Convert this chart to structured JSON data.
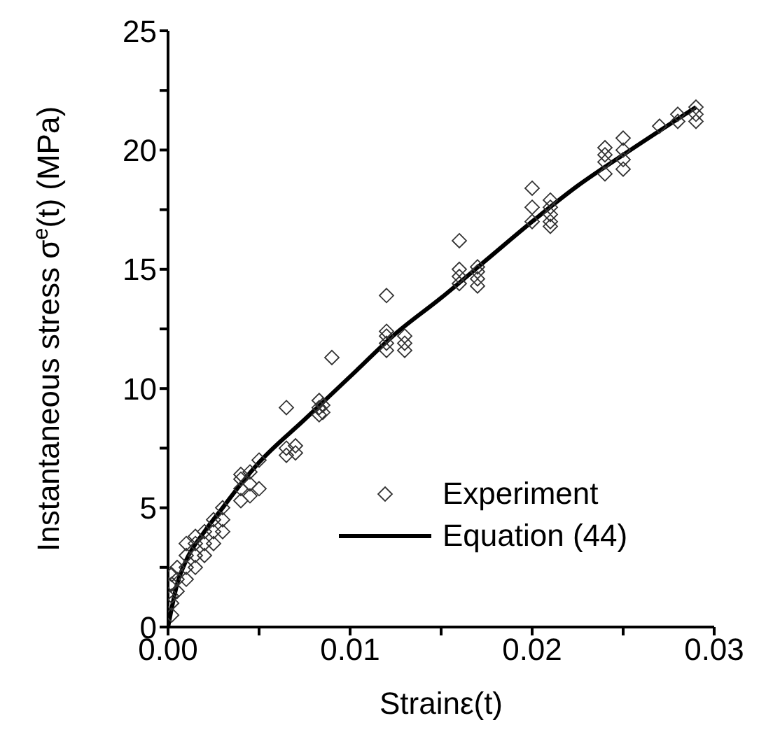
{
  "chart_data": {
    "type": "scatter",
    "xlabel": "Strainε(t)",
    "ylabel": "Instantaneous stress σ$^{e}$(t) (MPa)",
    "xlim": [
      0,
      0.03
    ],
    "ylim": [
      0,
      25
    ],
    "xticks": [
      {
        "value": 0,
        "label": "0.00"
      },
      {
        "value": 0.005,
        "label": null
      },
      {
        "value": 0.01,
        "label": "0.01"
      },
      {
        "value": 0.015,
        "label": null
      },
      {
        "value": 0.02,
        "label": "0.02"
      },
      {
        "value": 0.025,
        "label": null
      },
      {
        "value": 0.03,
        "label": "0.03"
      }
    ],
    "yticks": [
      0,
      {
        "value": 2.5,
        "label": null
      },
      5,
      {
        "value": 7.5,
        "label": null
      },
      10,
      {
        "value": 12.5,
        "label": null
      },
      15,
      {
        "value": 17.5,
        "label": null
      },
      20,
      {
        "value": 22.5,
        "label": null
      },
      25
    ],
    "grid": false,
    "legend": "bottom right",
    "series": [
      {
        "name": "Experiment",
        "marker": "diamond",
        "color": "#333333",
        "x": [
          0.0002,
          0.0002,
          0.0002,
          0.0002,
          0.0002,
          0.0005,
          0.0005,
          0.0005,
          0.001,
          0.001,
          0.001,
          0.001,
          0.0015,
          0.0015,
          0.0015,
          0.0015,
          0.002,
          0.002,
          0.002,
          0.0025,
          0.0025,
          0.0025,
          0.003,
          0.003,
          0.003,
          0.004,
          0.004,
          0.004,
          0.004,
          0.0045,
          0.0045,
          0.0045,
          0.005,
          0.005,
          0.0065,
          0.0065,
          0.0065,
          0.007,
          0.007,
          0.0083,
          0.0083,
          0.0083,
          0.0085,
          0.0085,
          0.009,
          0.012,
          0.012,
          0.012,
          0.012,
          0.012,
          0.013,
          0.013,
          0.013,
          0.016,
          0.016,
          0.016,
          0.016,
          0.017,
          0.017,
          0.017,
          0.017,
          0.02,
          0.02,
          0.02,
          0.021,
          0.021,
          0.021,
          0.021,
          0.021,
          0.024,
          0.024,
          0.024,
          0.024,
          0.025,
          0.025,
          0.025,
          0.025,
          0.027,
          0.028,
          0.028,
          0.029,
          0.029,
          0.029
        ],
        "values": [
          0.5,
          1.0,
          1.3,
          1.8,
          2.2,
          1.5,
          2.0,
          2.5,
          2.0,
          2.5,
          3.0,
          3.5,
          2.5,
          3.0,
          3.5,
          3.8,
          3.0,
          3.5,
          4.0,
          3.5,
          4.0,
          4.5,
          4.0,
          4.5,
          5.0,
          5.3,
          5.8,
          6.2,
          6.4,
          5.5,
          6.0,
          6.5,
          5.8,
          7.0,
          7.2,
          7.5,
          9.2,
          7.3,
          7.6,
          8.9,
          9.2,
          9.5,
          9.0,
          9.3,
          11.3,
          11.6,
          11.9,
          12.2,
          12.4,
          13.9,
          11.6,
          11.9,
          12.2,
          14.4,
          14.7,
          15.0,
          16.2,
          14.3,
          14.6,
          14.9,
          15.1,
          17.0,
          17.6,
          18.4,
          16.8,
          17.0,
          17.3,
          17.6,
          17.9,
          19.0,
          19.5,
          19.8,
          20.1,
          19.2,
          19.6,
          20.0,
          20.5,
          21.0,
          21.2,
          21.5,
          21.2,
          21.5,
          21.8
        ]
      },
      {
        "name": "Equation (44)",
        "type": "line",
        "marker": "none",
        "line_style": "solid",
        "color": "#000000",
        "x": [
          0,
          0.0005,
          0.001,
          0.002,
          0.003,
          0.004,
          0.005,
          0.0075,
          0.01,
          0.0125,
          0.015,
          0.0175,
          0.02,
          0.0225,
          0.025,
          0.029
        ],
        "values": [
          0,
          1.8,
          2.8,
          4.0,
          5.0,
          6.0,
          6.9,
          8.7,
          10.5,
          12.3,
          13.8,
          15.4,
          17.0,
          18.5,
          19.8,
          21.8
        ]
      }
    ]
  }
}
